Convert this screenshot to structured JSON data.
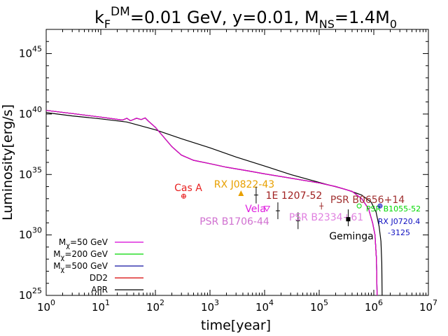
{
  "chart_data": {
    "type": "line",
    "title": {
      "k": "k",
      "k_sub": "F",
      "k_sup": "DM",
      "rest": "=0.01 GeV, y=0.01, M",
      "m_sub": "NS",
      "mid": "=1.4M",
      "zero_sub": "0"
    },
    "xlabel": "time[year]",
    "ylabel": "Luminosity[erg/s]",
    "x_scale": "log",
    "y_scale": "log",
    "xlim": [
      1,
      10000000
    ],
    "ylim": [
      1e+25,
      1e+47
    ],
    "x_ticks": [
      {
        "value": 1,
        "base": "10",
        "exp": "0"
      },
      {
        "value": 10,
        "base": "10",
        "exp": "1"
      },
      {
        "value": 100,
        "base": "10",
        "exp": "2"
      },
      {
        "value": 1000,
        "base": "10",
        "exp": "3"
      },
      {
        "value": 10000,
        "base": "10",
        "exp": "4"
      },
      {
        "value": 100000,
        "base": "10",
        "exp": "5"
      },
      {
        "value": 1000000,
        "base": "10",
        "exp": "6"
      },
      {
        "value": 10000000,
        "base": "10",
        "exp": "7"
      }
    ],
    "y_ticks": [
      {
        "value": 1e+25,
        "base": "10",
        "exp": "25"
      },
      {
        "value": 1e+30,
        "base": "10",
        "exp": "30"
      },
      {
        "value": 1e+35,
        "base": "10",
        "exp": "35"
      },
      {
        "value": 1e+40,
        "base": "10",
        "exp": "40"
      },
      {
        "value": 1e+45,
        "base": "10",
        "exp": "45"
      }
    ],
    "grid": false,
    "legend_position": "bottom-left",
    "series": [
      {
        "name_prefix": "M",
        "name_sub": "χ",
        "name_suffix": "=50 GeV",
        "color": "#d800d8",
        "points": [
          [
            1,
            2e+40
          ],
          [
            3,
            1.1e+40
          ],
          [
            10,
            5.6e+39
          ],
          [
            25,
            3.2e+39
          ],
          [
            30,
            4.5e+39
          ],
          [
            35,
            2.8e+39
          ],
          [
            45,
            4.5e+39
          ],
          [
            55,
            3.5e+39
          ],
          [
            65,
            4.8e+39
          ],
          [
            75,
            2.5e+39
          ],
          [
            100,
            8e+38
          ],
          [
            200,
            2e+37
          ],
          [
            300,
            4e+36
          ],
          [
            500,
            1.5e+36
          ],
          [
            1000,
            7.9e+35
          ],
          [
            2000,
            4e+35
          ],
          [
            5000,
            2e+35
          ],
          [
            10000,
            1.12e+35
          ],
          [
            30000,
            5e+34
          ],
          [
            100000,
            2e+34
          ],
          [
            200000,
            1e+34
          ],
          [
            400000,
            4e+33
          ],
          [
            600000,
            1e+33
          ],
          [
            800000,
            1.5e+32
          ],
          [
            950000,
            1e+31
          ],
          [
            1050000,
            1e+30
          ],
          [
            1120000,
            1e+28
          ],
          [
            1150000,
            1e+25
          ]
        ]
      },
      {
        "name_prefix": "M",
        "name_sub": "χ",
        "name_suffix": "=200 GeV",
        "color": "#00d800",
        "points": [
          [
            1,
            2e+40
          ],
          [
            3,
            1.1e+40
          ],
          [
            10,
            5.6e+39
          ],
          [
            25,
            3.2e+39
          ],
          [
            30,
            4.5e+39
          ],
          [
            35,
            2.8e+39
          ],
          [
            45,
            4.5e+39
          ],
          [
            55,
            3.5e+39
          ],
          [
            65,
            4.8e+39
          ],
          [
            75,
            2.5e+39
          ],
          [
            100,
            8e+38
          ],
          [
            200,
            2e+37
          ],
          [
            300,
            4e+36
          ],
          [
            500,
            1.5e+36
          ],
          [
            1000,
            7.9e+35
          ],
          [
            2000,
            4e+35
          ],
          [
            5000,
            2e+35
          ],
          [
            10000,
            1.12e+35
          ],
          [
            30000,
            5e+34
          ],
          [
            100000,
            2e+34
          ],
          [
            200000,
            1e+34
          ],
          [
            400000,
            4e+33
          ],
          [
            600000,
            1e+33
          ],
          [
            800000,
            1.5e+32
          ],
          [
            950000,
            1e+31
          ],
          [
            1050000,
            1e+30
          ],
          [
            1120000,
            1e+28
          ],
          [
            1150000,
            1e+25
          ]
        ]
      },
      {
        "name_prefix": "M",
        "name_sub": "χ",
        "name_suffix": "=500 GeV",
        "color": "#1010a0",
        "points": [
          [
            1,
            2e+40
          ],
          [
            3,
            1.1e+40
          ],
          [
            10,
            5.6e+39
          ],
          [
            25,
            3.2e+39
          ],
          [
            30,
            4.5e+39
          ],
          [
            35,
            2.8e+39
          ],
          [
            45,
            4.5e+39
          ],
          [
            55,
            3.5e+39
          ],
          [
            65,
            4.8e+39
          ],
          [
            75,
            2.5e+39
          ],
          [
            100,
            8e+38
          ],
          [
            200,
            2e+37
          ],
          [
            300,
            4e+36
          ],
          [
            500,
            1.5e+36
          ],
          [
            1000,
            7.9e+35
          ],
          [
            2000,
            4e+35
          ],
          [
            5000,
            2e+35
          ],
          [
            10000,
            1.12e+35
          ],
          [
            30000,
            5e+34
          ],
          [
            100000,
            2e+34
          ],
          [
            200000,
            1e+34
          ],
          [
            400000,
            4e+33
          ],
          [
            600000,
            1e+33
          ],
          [
            800000,
            1.5e+32
          ],
          [
            950000,
            1e+31
          ],
          [
            1050000,
            1e+30
          ],
          [
            1120000,
            1e+28
          ],
          [
            1150000,
            1e+25
          ]
        ]
      },
      {
        "name": "DD2",
        "color": "#d80000",
        "points": [
          [
            1,
            2e+40
          ],
          [
            3,
            1.1e+40
          ],
          [
            10,
            5.6e+39
          ],
          [
            25,
            3.2e+39
          ],
          [
            30,
            4.5e+39
          ],
          [
            35,
            2.8e+39
          ],
          [
            45,
            4.5e+39
          ],
          [
            55,
            3.5e+39
          ],
          [
            65,
            4.8e+39
          ],
          [
            75,
            2.5e+39
          ],
          [
            100,
            8e+38
          ],
          [
            200,
            2e+37
          ],
          [
            300,
            4e+36
          ],
          [
            500,
            1.5e+36
          ],
          [
            1000,
            7.9e+35
          ],
          [
            2000,
            4e+35
          ],
          [
            5000,
            2e+35
          ],
          [
            10000,
            1.12e+35
          ],
          [
            30000,
            5e+34
          ],
          [
            100000,
            2e+34
          ],
          [
            200000,
            1e+34
          ],
          [
            400000,
            4e+33
          ],
          [
            600000,
            1e+33
          ],
          [
            800000,
            1.5e+32
          ],
          [
            950000,
            1e+31
          ],
          [
            1050000,
            1e+30
          ],
          [
            1120000,
            1e+28
          ],
          [
            1150000,
            1e+25
          ]
        ]
      },
      {
        "name": "APR",
        "color": "#000000",
        "points": [
          [
            1,
            1.3e+40
          ],
          [
            3,
            7e+39
          ],
          [
            10,
            4e+39
          ],
          [
            30,
            2.2e+39
          ],
          [
            100,
            5e+38
          ],
          [
            300,
            9e+37
          ],
          [
            1000,
            1.6e+37
          ],
          [
            3000,
            2.8e+36
          ],
          [
            10000,
            5e+35
          ],
          [
            30000,
            1e+35
          ],
          [
            100000,
            2.2e+34
          ],
          [
            300000,
            6e+33
          ],
          [
            600000,
            2e+33
          ],
          [
            900000,
            5e+32
          ],
          [
            1100000,
            8e+31
          ],
          [
            1250000,
            5e+30
          ],
          [
            1350000,
            3e+29
          ],
          [
            1400000,
            5e+27
          ],
          [
            1420000,
            1e+25
          ]
        ]
      }
    ],
    "annotations": [
      {
        "text": "Cas A",
        "color": "#e82020",
        "x": 330,
        "y": 1.6e+33,
        "marker": "circle-plus"
      },
      {
        "text": "RX J0822-43",
        "color": "#e8a000",
        "x": 3700,
        "y": 2.5e+33,
        "marker": "triangle"
      },
      {
        "text": "1E 1207-52",
        "color": "#a02020",
        "x": 7000,
        "y": 2e+33,
        "marker": "errorbar"
      },
      {
        "text": "PSR B0656+14",
        "color": "#a03030",
        "x": 110000,
        "y": 2.5e+32,
        "marker": "cross"
      },
      {
        "text": "Vela",
        "color": "#e020e0",
        "x": 11000,
        "y": 1.6e+32,
        "marker": "triangle-down"
      },
      {
        "text": "PSR B1706-44",
        "color": "#d070d0",
        "x": 17500,
        "y": 1e+32,
        "marker": "errorbar"
      },
      {
        "text": "PSR B2334+61",
        "color": "#e080e0",
        "x": 41000,
        "y": 1.5e+31,
        "marker": "errorbar"
      },
      {
        "text": "Geminga",
        "color": "#000000",
        "x": 340000,
        "y": 2e+31,
        "marker": "square"
      },
      {
        "text": "PSR B1055-52",
        "color": "#00d800",
        "x": 540000,
        "y": 2.5e+32,
        "marker": "circle"
      },
      {
        "text": "RX J0720.4",
        "color": "#1010c0",
        "x": 1300000,
        "y": 2.5e+32,
        "marker": "circle-plus"
      },
      {
        "text": "-3125",
        "color": "#1010c0"
      }
    ]
  }
}
